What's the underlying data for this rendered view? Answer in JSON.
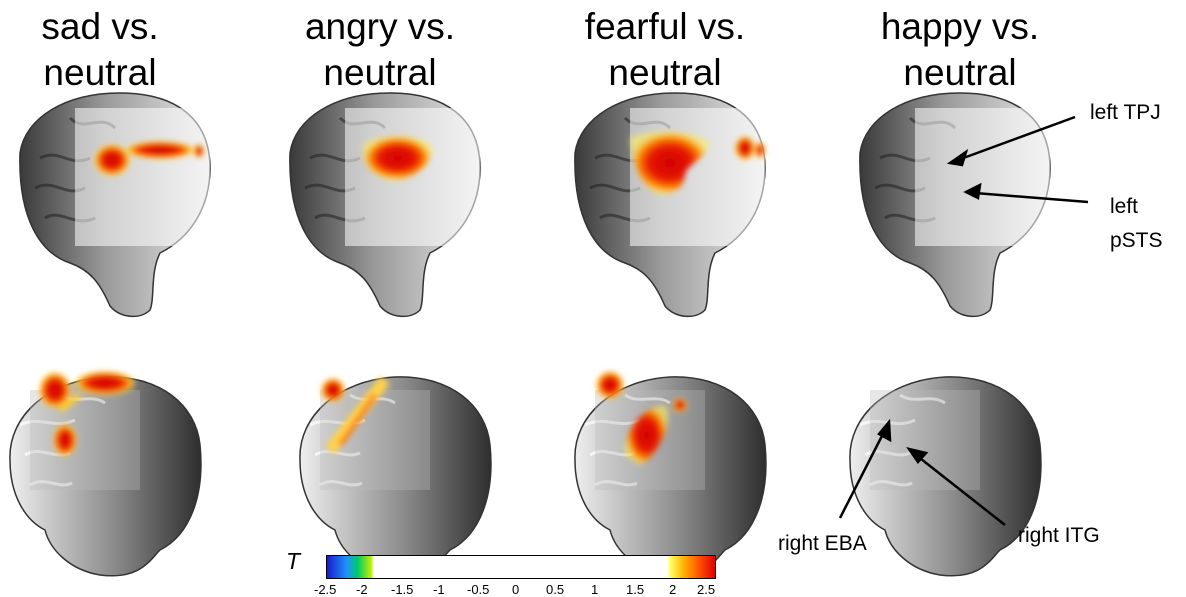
{
  "titles": [
    {
      "line1": "sad vs.",
      "line2": "neutral"
    },
    {
      "line1": "angry vs.",
      "line2": "neutral"
    },
    {
      "line1": "fearful vs.",
      "line2": "neutral"
    },
    {
      "line1": "happy vs.",
      "line2": "neutral"
    }
  ],
  "annotations": {
    "left_tpj": "left TPJ",
    "left_psts_1": "left",
    "left_psts_2": "pSTS",
    "right_eba": "right EBA",
    "right_itg": "right ITG"
  },
  "colorbar": {
    "symbol": "T",
    "ticks": [
      "-2.5",
      "-2",
      "-1.5",
      "-1",
      "-0.5",
      "0",
      "0.5",
      "1",
      "1.5",
      "2",
      "2.5"
    ],
    "min": -2.5,
    "max": 2.5,
    "colors": {
      "neg_max": "#1a1acc",
      "pos_max": "#e00000",
      "pos_mid": "#ff8c00",
      "threshold": "#ffff66"
    }
  }
}
